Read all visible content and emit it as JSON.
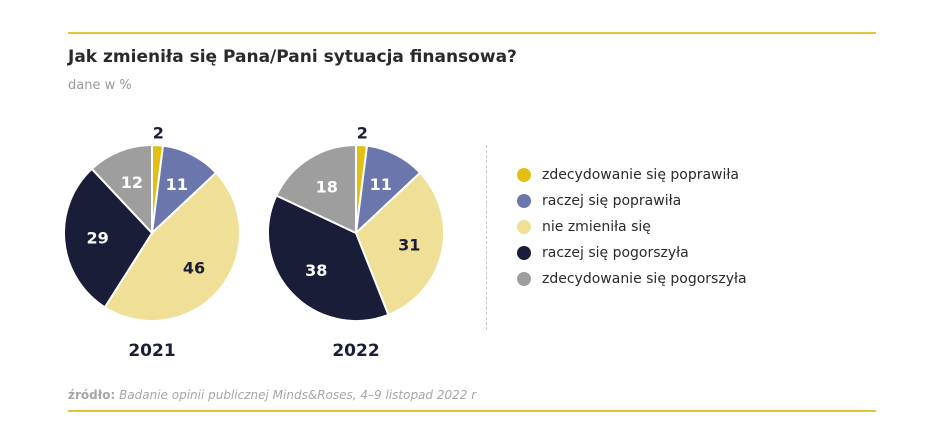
{
  "header": {
    "title": "Jak zmieniła się Pana/Pani sytuacja finansowa?",
    "subtitle": "dane w %"
  },
  "source": {
    "label": "źródło:",
    "text": "Badanie opinii publicznej Minds&Roses, 4–9 listopad 2022 r"
  },
  "chart_data": {
    "type": "pie",
    "title": "Jak zmieniła się Pana/Pani sytuacja finansowa?",
    "subtitle": "dane w %",
    "legend_position": "right",
    "categories": [
      "zdecydowanie się poprawiła",
      "raczej się poprawiła",
      "nie zmieniła się",
      "raczej się pogorszyła",
      "zdecydowanie się pogorszyła"
    ],
    "colors": [
      "#e3bf12",
      "#6b76ad",
      "#f0df97",
      "#1a1d37",
      "#9e9e9e"
    ],
    "series": [
      {
        "name": "2021",
        "values": [
          2,
          11,
          46,
          29,
          12
        ]
      },
      {
        "name": "2022",
        "values": [
          2,
          11,
          31,
          38,
          18
        ]
      }
    ]
  }
}
